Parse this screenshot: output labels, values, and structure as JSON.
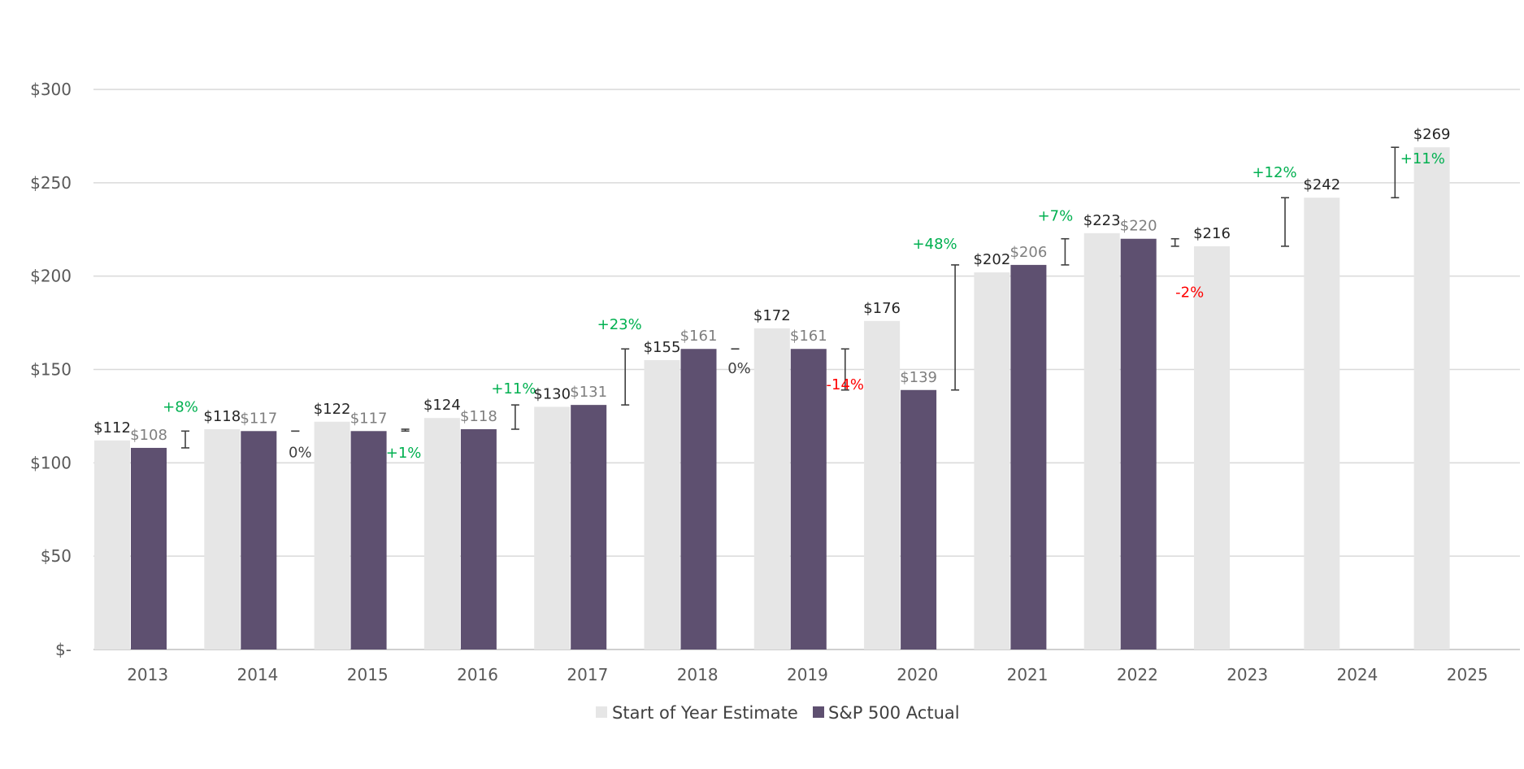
{
  "chart_data": {
    "type": "bar",
    "categories": [
      "2013",
      "2014",
      "2015",
      "2016",
      "2017",
      "2018",
      "2019",
      "2020",
      "2021",
      "2022",
      "2023",
      "2024",
      "2025"
    ],
    "series": [
      {
        "name": "Start of Year Estimate",
        "values": [
          112,
          118,
          122,
          124,
          130,
          155,
          172,
          176,
          202,
          223,
          216,
          242,
          269
        ],
        "color": "#e6e6e6"
      },
      {
        "name": "S&P 500 Actual",
        "values": [
          108,
          117,
          117,
          118,
          131,
          161,
          161,
          139,
          206,
          220,
          null,
          null,
          null
        ],
        "color": "#5e5070"
      }
    ],
    "value_labels": {
      "estimate": [
        "$112",
        "$118",
        "$122",
        "$124",
        "$130",
        "$155",
        "$172",
        "$176",
        "$202",
        "$223",
        "$216",
        "$242",
        "$269"
      ],
      "actual": [
        "$108",
        "$117",
        "$117",
        "$118",
        "$131",
        "$161",
        "$161",
        "$139",
        "$206",
        "$220",
        null,
        null,
        null
      ]
    },
    "growth": [
      {
        "after": "2013",
        "low": 108,
        "high": 117,
        "label": "+8%",
        "color": "#00b050"
      },
      {
        "after": "2014",
        "low": 117,
        "high": 117,
        "label": "0%",
        "color": "#404040"
      },
      {
        "after": "2015",
        "low": 117,
        "high": 118,
        "label": "+1%",
        "color": "#00b050"
      },
      {
        "after": "2016",
        "low": 118,
        "high": 131,
        "label": "+11%",
        "color": "#00b050"
      },
      {
        "after": "2017",
        "low": 131,
        "high": 161,
        "label": "+23%",
        "color": "#00b050"
      },
      {
        "after": "2018",
        "low": 161,
        "high": 161,
        "label": "0%",
        "color": "#404040"
      },
      {
        "after": "2019",
        "low": 139,
        "high": 161,
        "label": "-14%",
        "color": "#ff0000"
      },
      {
        "after": "2020",
        "low": 139,
        "high": 206,
        "label": "+48%",
        "color": "#00b050"
      },
      {
        "after": "2021",
        "low": 206,
        "high": 220,
        "label": "+7%",
        "color": "#00b050"
      },
      {
        "after": "2022",
        "low": 216,
        "high": 220,
        "label": "-2%",
        "color": "#ff0000"
      },
      {
        "after": "2023",
        "low": 216,
        "high": 242,
        "label": "+12%",
        "color": "#00b050"
      },
      {
        "after": "2024",
        "low": 242,
        "high": 269,
        "label": "+11%",
        "color": "#00b050"
      }
    ],
    "yticks": [
      0,
      50,
      100,
      150,
      200,
      250,
      300
    ],
    "ytick_labels": [
      "$-",
      "$50",
      "$100",
      "$150",
      "$200",
      "$250",
      "$300"
    ],
    "ylim": [
      0,
      300
    ],
    "title": "",
    "xlabel": "",
    "ylabel": "",
    "grid": true,
    "legend_position": "bottom",
    "colors": {
      "grid": "#d9d9d9",
      "axis": "#bfbfbf",
      "label_estimate": "#262626",
      "label_actual": "#7f7f7f",
      "error_bar": "#404040"
    }
  },
  "legend": {
    "estimate_label": "Start of Year Estimate",
    "actual_label": "S&P 500 Actual"
  }
}
